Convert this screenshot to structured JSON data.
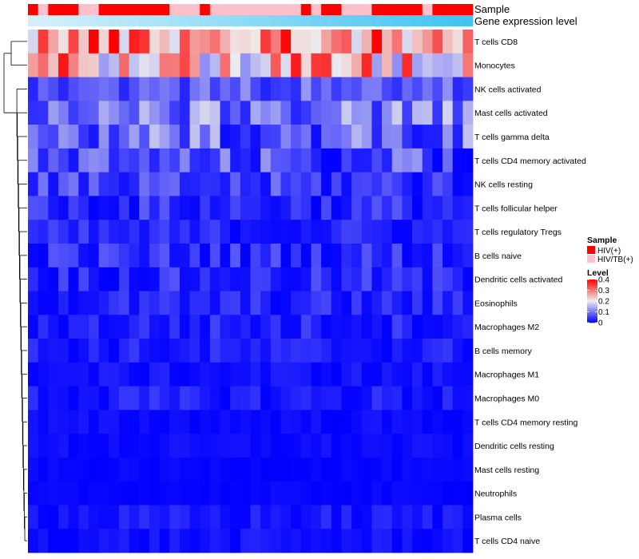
{
  "chart_data": {
    "type": "heatmap",
    "row_labels": [
      "T cells CD8",
      "Monocytes",
      "NK cells activated",
      "Mast cells activated",
      "T cells gamma delta",
      "T cells CD4 memory activated",
      "NK cells resting",
      "T cells follicular helper",
      "T cells regulatory  Tregs",
      "B cells naive",
      "Dendritic cells activated",
      "Eosinophils",
      "Macrophages M2",
      "B cells memory",
      "Macrophages M1",
      "Macrophages M0",
      "T cells CD4 memory resting",
      "Dendritic cells resting",
      "Mast cells resting",
      "Neutrophils",
      "Plasma cells",
      "T cells CD4 naive"
    ],
    "n_samples": 44,
    "annotation_labels": [
      "Sample",
      "Gene expression level"
    ],
    "sample_groups": [
      "pos",
      "neg",
      "pos",
      "pos",
      "pos",
      "neg",
      "neg",
      "pos",
      "pos",
      "pos",
      "pos",
      "pos",
      "pos",
      "pos",
      "neg",
      "neg",
      "neg",
      "pos",
      "neg",
      "neg",
      "neg",
      "neg",
      "neg",
      "neg",
      "neg",
      "neg",
      "neg",
      "pos",
      "neg",
      "pos",
      "pos",
      "neg",
      "neg",
      "neg",
      "pos",
      "pos",
      "pos",
      "pos",
      "pos",
      "neg",
      "pos",
      "pos",
      "pos",
      "pos"
    ],
    "legend": {
      "sample_title": "Sample",
      "sample_entries": [
        {
          "label": "HIV(+)",
          "color": "#ff0000"
        },
        {
          "label": "HIV/TB(+)",
          "color": "#ffc0cb"
        }
      ],
      "level_title": "Level",
      "level_ticks": [
        "0.4",
        "0.3",
        "0.2",
        "0.1",
        "0"
      ],
      "level_range": [
        0,
        0.4
      ]
    },
    "colors": {
      "low": "#0000ff",
      "mid": "#eeeeee",
      "high": "#ff0000",
      "gene_level_low": "#d6f0fb",
      "gene_level_high": "#40c4f0"
    },
    "row_level_ranges": [
      [
        0.18,
        0.42
      ],
      [
        0.12,
        0.4
      ],
      [
        0.03,
        0.13
      ],
      [
        0.03,
        0.18
      ],
      [
        0.01,
        0.17
      ],
      [
        0.0,
        0.13
      ],
      [
        0.0,
        0.1
      ],
      [
        0.0,
        0.08
      ],
      [
        0.0,
        0.06
      ],
      [
        0.0,
        0.08
      ],
      [
        0.0,
        0.07
      ],
      [
        0.0,
        0.06
      ],
      [
        0.0,
        0.06
      ],
      [
        0.0,
        0.05
      ],
      [
        0.0,
        0.03
      ],
      [
        0.0,
        0.05
      ],
      [
        0.0,
        0.02
      ],
      [
        0.0,
        0.02
      ],
      [
        0.0,
        0.01
      ],
      [
        0.0,
        0.01
      ],
      [
        0.0,
        0.04
      ],
      [
        0.0,
        0.03
      ]
    ],
    "title": "",
    "xlabel": "",
    "ylabel": ""
  }
}
